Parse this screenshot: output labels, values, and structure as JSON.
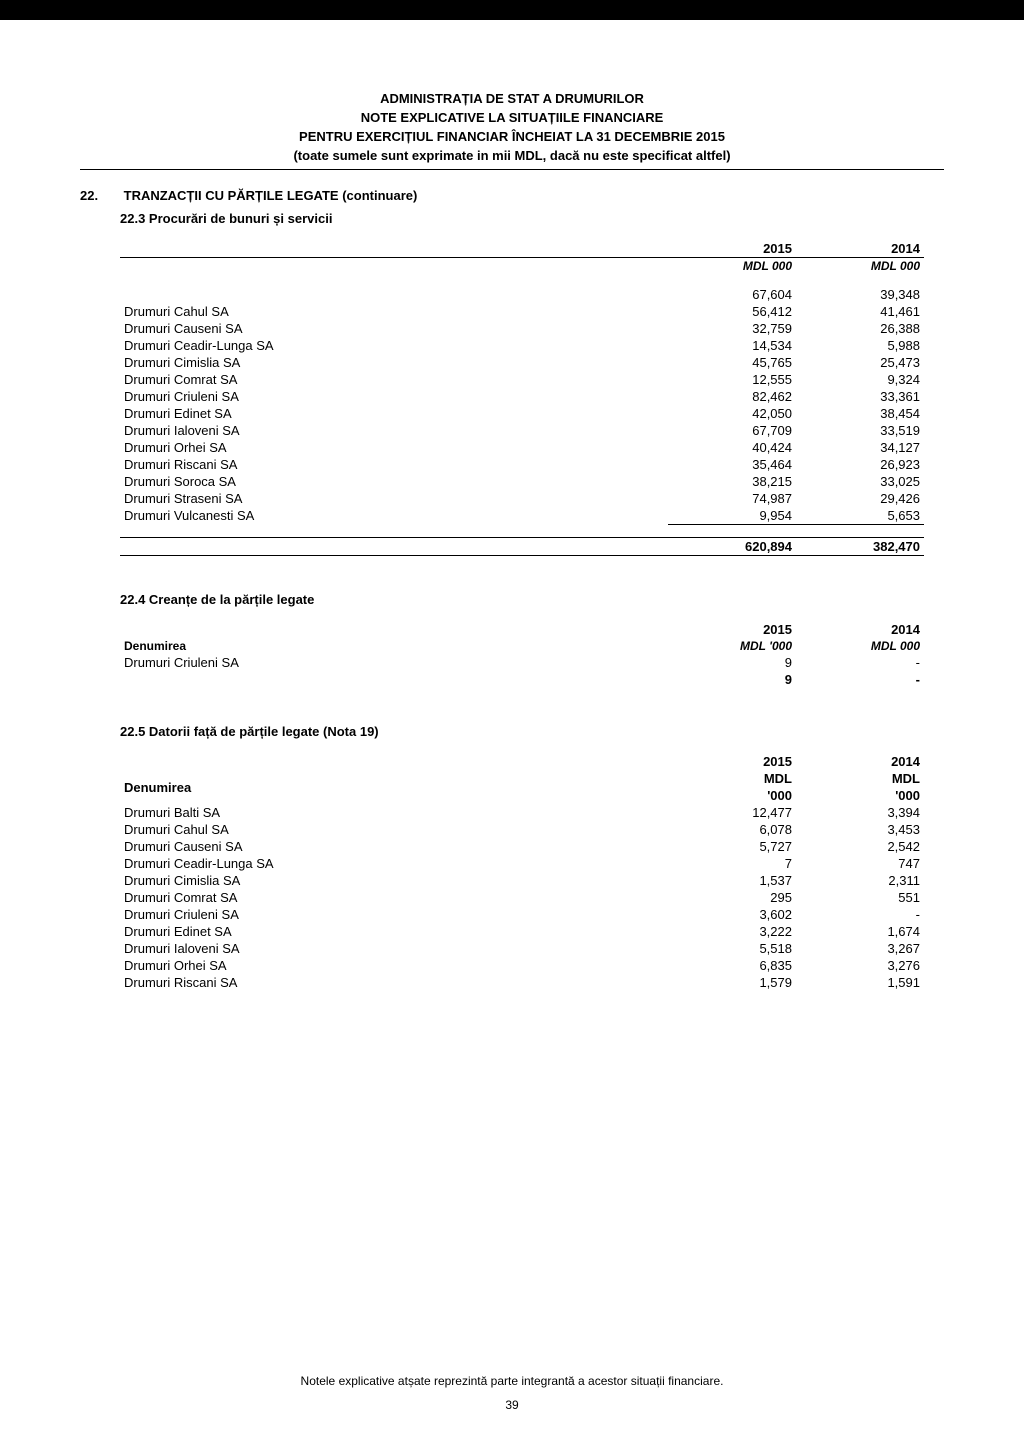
{
  "header": {
    "l1": "ADMINISTRAȚIA DE STAT A DRUMURILOR",
    "l2": "NOTE EXPLICATIVE LA SITUAȚIILE FINANCIARE",
    "l3": "PENTRU EXERCIȚIUL FINANCIAR ÎNCHEIAT LA 31 DECEMBRIE 2015",
    "l4": "(toate sumele sunt exprimate in mii MDL, dacă nu este specificat altfel)"
  },
  "sec22": {
    "num": "22.",
    "title": "TRANZACȚII CU PĂRȚILE LEGATE (continuare)"
  },
  "s223": {
    "title": "22.3 Procurări de bunuri și servicii",
    "h2015": "2015",
    "h2014": "2014",
    "u2015": "MDL 000",
    "u2014": "MDL 000",
    "first": {
      "v2015": "67,604",
      "v2014": "39,348"
    },
    "rows": [
      {
        "label": "Drumuri Cahul SA",
        "v2015": "56,412",
        "v2014": "41,461"
      },
      {
        "label": "Drumuri Causeni SA",
        "v2015": "32,759",
        "v2014": "26,388"
      },
      {
        "label": "Drumuri Ceadir-Lunga SA",
        "v2015": "14,534",
        "v2014": "5,988"
      },
      {
        "label": "Drumuri Cimislia SA",
        "v2015": "45,765",
        "v2014": "25,473"
      },
      {
        "label": "Drumuri Comrat SA",
        "v2015": "12,555",
        "v2014": "9,324"
      },
      {
        "label": "Drumuri Criuleni SA",
        "v2015": "82,462",
        "v2014": "33,361"
      },
      {
        "label": "Drumuri Edinet SA",
        "v2015": "42,050",
        "v2014": "38,454"
      },
      {
        "label": "Drumuri Ialoveni SA",
        "v2015": "67,709",
        "v2014": "33,519"
      },
      {
        "label": "Drumuri Orhei SA",
        "v2015": "40,424",
        "v2014": "34,127"
      },
      {
        "label": "Drumuri Riscani SA",
        "v2015": "35,464",
        "v2014": "26,923"
      },
      {
        "label": "Drumuri Soroca SA",
        "v2015": "38,215",
        "v2014": "33,025"
      },
      {
        "label": "Drumuri Straseni SA",
        "v2015": "74,987",
        "v2014": "29,426"
      },
      {
        "label": "Drumuri Vulcanesti SA",
        "v2015": "9,954",
        "v2014": "5,653"
      }
    ],
    "total": {
      "v2015": "620,894",
      "v2014": "382,470"
    }
  },
  "s224": {
    "title": "22.4 Creanțe de la părțile legate",
    "hdr_label": "Denumirea",
    "h2015": "2015",
    "h2014": "2014",
    "u2015": "MDL '000",
    "u2014": "MDL 000",
    "rows": [
      {
        "label": "Drumuri Criuleni SA",
        "v2015": "9",
        "v2014": "-"
      }
    ],
    "total": {
      "v2015": "9",
      "v2014": "-"
    }
  },
  "s225": {
    "title": "22.5 Datorii față de părțile legate (Nota 19)",
    "hdr_label": "Denumirea",
    "h2015": "2015",
    "h2014": "2014",
    "u2015_a": "MDL",
    "u2015_b": "'000",
    "u2014_a": "MDL",
    "u2014_b": "'000",
    "rows": [
      {
        "label": "Drumuri Balti SA",
        "v2015": "12,477",
        "v2014": "3,394"
      },
      {
        "label": "Drumuri Cahul SA",
        "v2015": "6,078",
        "v2014": "3,453"
      },
      {
        "label": "Drumuri Causeni SA",
        "v2015": "5,727",
        "v2014": "2,542"
      },
      {
        "label": "Drumuri Ceadir-Lunga SA",
        "v2015": "7",
        "v2014": "747"
      },
      {
        "label": "Drumuri Cimislia SA",
        "v2015": "1,537",
        "v2014": "2,311"
      },
      {
        "label": "Drumuri Comrat SA",
        "v2015": "295",
        "v2014": "551"
      },
      {
        "label": "Drumuri Criuleni SA",
        "v2015": "3,602",
        "v2014": "-"
      },
      {
        "label": "Drumuri Edinet SA",
        "v2015": "3,222",
        "v2014": "1,674"
      },
      {
        "label": "Drumuri Ialoveni SA",
        "v2015": "5,518",
        "v2014": "3,267"
      },
      {
        "label": "Drumuri Orhei SA",
        "v2015": "6,835",
        "v2014": "3,276"
      },
      {
        "label": "Drumuri Riscani SA",
        "v2015": "1,579",
        "v2014": "1,591"
      }
    ]
  },
  "footnote": "Notele explicative atșate reprezintă parte integrantă a acestor situații financiare.",
  "page_num": "39"
}
